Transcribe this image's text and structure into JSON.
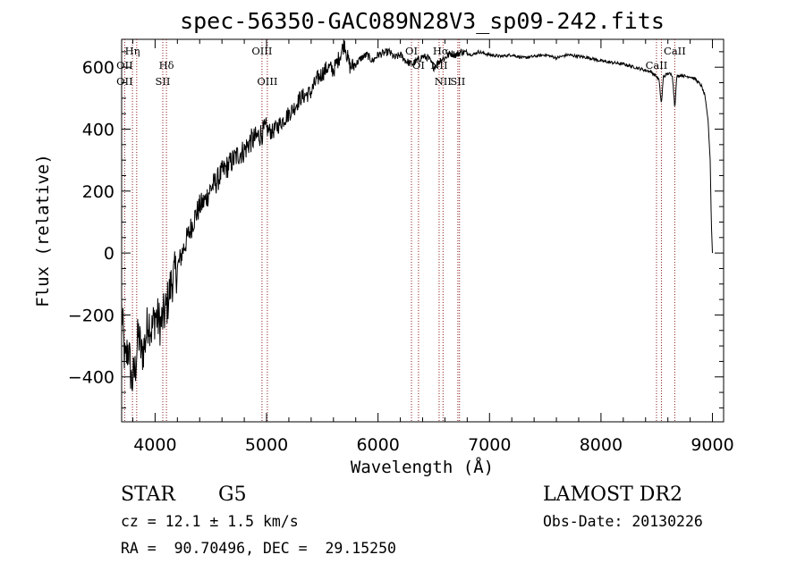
{
  "chart_data": {
    "type": "line",
    "title": "spec-56350-GAC089N28V3_sp09-242.fits",
    "xlabel": "Wavelength (Å)",
    "ylabel": "Flux (relative)",
    "xlim": [
      3700,
      9100
    ],
    "ylim": [
      -545,
      690
    ],
    "x_ticks": [
      4000,
      5000,
      6000,
      7000,
      8000,
      9000
    ],
    "x_tick_labels": [
      "4000",
      "5000",
      "6000",
      "7000",
      "8000",
      "9000"
    ],
    "y_ticks": [
      -400,
      -200,
      0,
      200,
      400,
      600
    ],
    "y_tick_labels": [
      "−400",
      "−200",
      "0",
      "200",
      "400",
      "600"
    ],
    "grid": false,
    "series": [
      {
        "x": [
          3700,
          3730,
          3760,
          3790,
          3820,
          3850,
          3880,
          3910,
          3940,
          3970,
          4000,
          4050,
          4100,
          4150,
          4200,
          4250,
          4300,
          4350,
          4400,
          4450,
          4500,
          4550,
          4600,
          4650,
          4700,
          4750,
          4800,
          4850,
          4900,
          4950,
          5000,
          5050,
          5100,
          5150,
          5200,
          5250,
          5300,
          5350,
          5400,
          5450,
          5500,
          5550,
          5600,
          5650,
          5700,
          5720,
          5750,
          5800,
          5850,
          5900,
          5950,
          6000,
          6050,
          6100,
          6150,
          6200,
          6250,
          6300,
          6350,
          6400,
          6450,
          6500,
          6563,
          6600,
          6650,
          6700,
          6750,
          6800,
          6850,
          6900,
          6950,
          7000,
          7100,
          7200,
          7300,
          7400,
          7500,
          7600,
          7700,
          7800,
          7900,
          8000,
          8100,
          8200,
          8300,
          8350,
          8400,
          8450,
          8498,
          8520,
          8542,
          8560,
          8600,
          8640,
          8662,
          8680,
          8720,
          8760,
          8800,
          8850,
          8900,
          8930,
          8960,
          8980,
          8990,
          9000
        ],
        "y": [
          -180,
          -360,
          -300,
          -420,
          -380,
          -260,
          -330,
          -290,
          -210,
          -250,
          -200,
          -230,
          -180,
          -90,
          -50,
          10,
          60,
          110,
          150,
          170,
          210,
          230,
          260,
          280,
          300,
          320,
          330,
          360,
          370,
          385,
          400,
          390,
          410,
          430,
          450,
          470,
          500,
          510,
          520,
          560,
          580,
          600,
          590,
          630,
          680,
          640,
          600,
          610,
          630,
          640,
          620,
          640,
          645,
          650,
          630,
          640,
          620,
          610,
          620,
          635,
          630,
          600,
          625,
          630,
          645,
          640,
          650,
          645,
          640,
          650,
          645,
          640,
          635,
          640,
          630,
          635,
          640,
          630,
          640,
          635,
          630,
          620,
          615,
          610,
          600,
          595,
          590,
          585,
          570,
          560,
          480,
          570,
          580,
          575,
          470,
          570,
          575,
          570,
          570,
          560,
          540,
          510,
          430,
          300,
          100,
          0
        ]
      }
    ],
    "line_markers": [
      {
        "x": 3797,
        "label": "Hη",
        "row": 1
      },
      {
        "x": 3727,
        "label": "OII",
        "row": 2
      },
      {
        "x": 3727,
        "label": "OII",
        "row": 3
      },
      {
        "x": 4102,
        "label": "Hδ",
        "row": 2
      },
      {
        "x": 4069,
        "label": "SII",
        "row": 3
      },
      {
        "x": 4959,
        "label": "OIII",
        "row": 1
      },
      {
        "x": 5007,
        "label": "OIII",
        "row": 3
      },
      {
        "x": 6300,
        "label": "OI",
        "row": 1
      },
      {
        "x": 6363,
        "label": "OI",
        "row": 2
      },
      {
        "x": 6548,
        "label": "NII",
        "row": 2
      },
      {
        "x": 6583,
        "label": "NII",
        "row": 3
      },
      {
        "x": 6563,
        "label": "Hα",
        "row": 1
      },
      {
        "x": 6716,
        "label": "SII",
        "row": 3
      },
      {
        "x": 8498,
        "label": "CaII",
        "row": 2
      },
      {
        "x": 8662,
        "label": "CaII",
        "row": 1
      }
    ],
    "marker_lines_x": [
      3727,
      3797,
      3835,
      4069,
      4102,
      4959,
      5007,
      6300,
      6363,
      6548,
      6583,
      6716,
      6731,
      8498,
      8542,
      8662
    ]
  },
  "info": {
    "object_class": "STAR",
    "subclass": "G5",
    "survey": "LAMOST DR2",
    "redshift": "cz = 12.1 ± 1.5 km/s",
    "obs_date": "Obs-Date: 20130226",
    "coords": "RA =  90.70496, DEC =  29.15250"
  },
  "colors": {
    "spectrum": "#000000",
    "marker_lines": "#8b1a1a",
    "frame": "#000000"
  }
}
